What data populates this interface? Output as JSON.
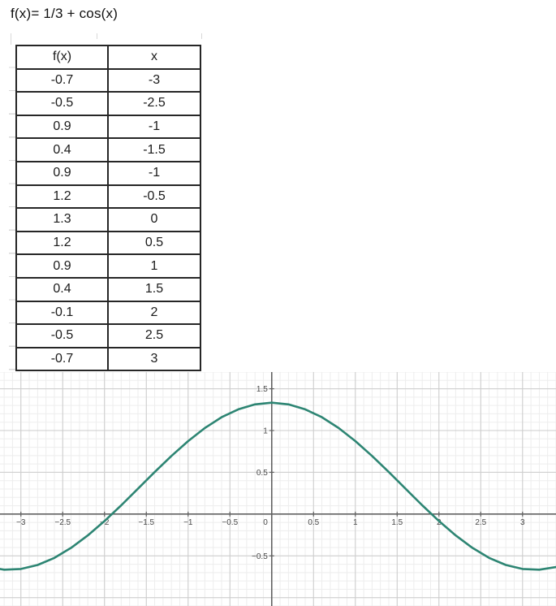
{
  "title": "f(x)= 1/3 + cos(x)",
  "table": {
    "headers": [
      "f(x)",
      "x"
    ],
    "rows": [
      [
        "-0.7",
        "-3"
      ],
      [
        "-0.5",
        "-2.5"
      ],
      [
        "0.9",
        "-1"
      ],
      [
        "0.4",
        "-1.5"
      ],
      [
        "0.9",
        "-1"
      ],
      [
        "1.2",
        "-0.5"
      ],
      [
        "1.3",
        "0"
      ],
      [
        "1.2",
        "0.5"
      ],
      [
        "0.9",
        "1"
      ],
      [
        "0.4",
        "1.5"
      ],
      [
        "-0.1",
        "2"
      ],
      [
        "-0.5",
        "2.5"
      ],
      [
        "-0.7",
        "3"
      ]
    ]
  },
  "chart_data": {
    "type": "line",
    "title": "",
    "function": "f(x) = 1/3 + cos(x)",
    "x": [
      -3.4,
      -3.2,
      -3,
      -2.8,
      -2.6,
      -2.4,
      -2.2,
      -2,
      -1.8,
      -1.6,
      -1.4,
      -1.2,
      -1,
      -0.8,
      -0.6,
      -0.4,
      -0.2,
      0,
      0.2,
      0.4,
      0.6,
      0.8,
      1,
      1.2,
      1.4,
      1.6,
      1.8,
      2,
      2.2,
      2.4,
      2.6,
      2.8,
      3,
      3.2,
      3.4
    ],
    "y": [
      -0.633,
      -0.665,
      -0.657,
      -0.609,
      -0.524,
      -0.404,
      -0.255,
      -0.083,
      0.106,
      0.304,
      0.503,
      0.696,
      0.874,
      1.03,
      1.159,
      1.254,
      1.313,
      1.333,
      1.313,
      1.254,
      1.159,
      1.03,
      0.874,
      0.696,
      0.503,
      0.304,
      0.106,
      -0.083,
      -0.255,
      -0.404,
      -0.524,
      -0.609,
      -0.657,
      -0.665,
      -0.633
    ],
    "xlim": [
      -3.25,
      3.4
    ],
    "ylim": [
      -1.1,
      1.7
    ],
    "x_ticks": [
      -3,
      -2.5,
      -2,
      -1.5,
      -1,
      -0.5,
      0.5,
      1,
      1.5,
      2,
      2.5,
      3
    ],
    "x_tick_labels": [
      "−3",
      "−2.5",
      "−2",
      "−1.5",
      "−1",
      "−0.5",
      "0.5",
      "1",
      "1.5",
      "2",
      "2.5",
      "3"
    ],
    "y_ticks": [
      1.5,
      1,
      0.5,
      -0.5
    ],
    "y_tick_labels": [
      "1.5",
      "1",
      "0.5",
      "−0.5"
    ],
    "origin_label": "0",
    "grid": {
      "minor_step": 0.1,
      "major_step": 0.5,
      "grid_on": true
    },
    "legend": "none",
    "colors": {
      "curve": "#2d8573",
      "axis": "#616161",
      "major_grid": "#cccccc",
      "minor_grid": "#ededed",
      "label": "#4a4a4a",
      "table_border": "#262626"
    }
  }
}
